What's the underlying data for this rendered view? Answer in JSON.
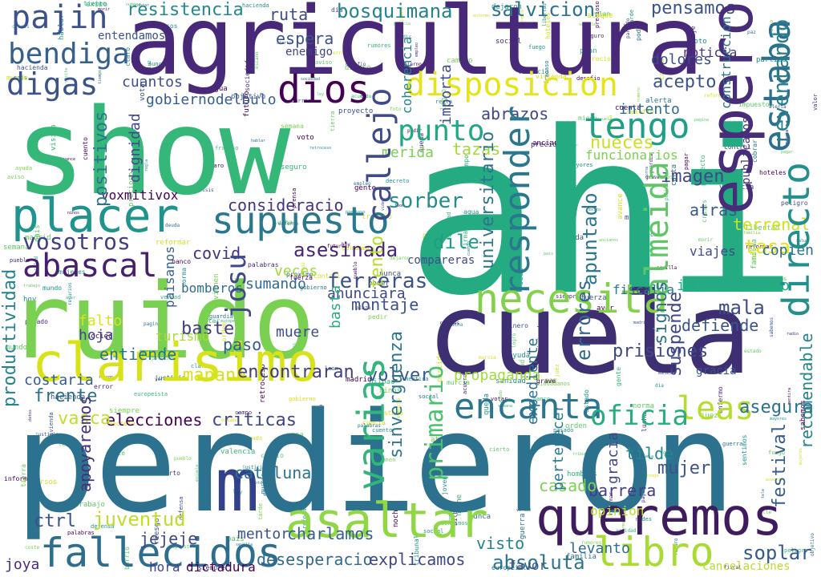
{
  "palette": {
    "dark_purple": "#440154",
    "indigo": "#3b528b",
    "teal": "#21918c",
    "green": "#5ec962",
    "lime": "#7ad151",
    "yellow": "#d5e21a"
  },
  "words": [
    {
      "text": "perdieron",
      "color": "#2c728e"
    },
    {
      "text": "ahi",
      "color": "#25ab82"
    },
    {
      "text": "agricultura",
      "color": "#482878"
    },
    {
      "text": "show",
      "color": "#35b779"
    },
    {
      "text": "ruido",
      "color": "#7ad151"
    },
    {
      "text": "cuela",
      "color": "#3e2f73"
    },
    {
      "text": "espero",
      "color": "#472c7a"
    },
    {
      "text": "placer",
      "color": "#1f948c"
    },
    {
      "text": "supuesto",
      "color": "#2a788e"
    },
    {
      "text": "clarisimo",
      "color": "#d8e219"
    },
    {
      "text": "queremos",
      "color": "#3f1c5e"
    },
    {
      "text": "asaltar",
      "color": "#8fd744"
    },
    {
      "text": "fallecidos",
      "color": "#2d6e8e"
    },
    {
      "text": "m",
      "color": "#31418b"
    },
    {
      "text": "disposicion",
      "color": "#e4e419"
    },
    {
      "text": "estaba",
      "color": "#2d708e"
    },
    {
      "text": "directo",
      "color": "#21908d"
    },
    {
      "text": "necesita",
      "color": "#83d14b"
    },
    {
      "text": "libro",
      "color": "#a8db34"
    },
    {
      "text": "encanta",
      "color": "#2b758e"
    },
    {
      "text": "abascal",
      "color": "#481f70"
    },
    {
      "text": "pajin",
      "color": "#3b528b"
    },
    {
      "text": "dios",
      "color": "#440154"
    },
    {
      "text": "bendiga",
      "color": "#355f8d"
    },
    {
      "text": "digas",
      "color": "#3a538b"
    },
    {
      "text": "punto",
      "color": "#22a884"
    },
    {
      "text": "tengo",
      "color": "#1f9e89"
    },
    {
      "text": "varias",
      "color": "#30b57a"
    },
    {
      "text": "leas",
      "color": "#b5de2b"
    },
    {
      "text": "oficia",
      "color": "#26ad81"
    },
    {
      "text": "almeida",
      "color": "#5dc863"
    },
    {
      "text": "responder",
      "color": "#2a788e"
    },
    {
      "text": "terrenal",
      "color": "#3e4a89"
    },
    {
      "text": "callejo",
      "color": "#cde11d"
    },
    {
      "text": "vosotros",
      "color": "#433e85"
    },
    {
      "text": "josu",
      "color": "#3f4889"
    },
    {
      "text": "resistencia",
      "color": "#23898e"
    },
    {
      "text": "bosquimana",
      "color": "#26828e"
    },
    {
      "text": "salvicion",
      "color": "#2c728e"
    },
    {
      "text": "consideracio",
      "color": "#46337e"
    },
    {
      "text": "asesinada",
      "color": "#482576"
    },
    {
      "text": "ferreras",
      "color": "#3b528b"
    },
    {
      "text": "mala",
      "color": "#3e4c8a"
    },
    {
      "text": "sorber",
      "color": "#228d8d"
    },
    {
      "text": "tasa",
      "color": "#e5e419"
    },
    {
      "text": "dile",
      "color": "#1f9e89"
    },
    {
      "text": "tento",
      "color": "#b8de29"
    },
    {
      "text": "reventando",
      "color": "#277f8e"
    },
    {
      "text": "abrazos",
      "color": "#404688"
    },
    {
      "text": "tazas",
      "color": "#a2da37"
    },
    {
      "text": "primario",
      "color": "#4ac16d"
    },
    {
      "text": "asegura",
      "color": "#2d708e"
    },
    {
      "text": "sinverguenza",
      "color": "#2b758e"
    },
    {
      "text": "manana",
      "color": "#d8e219"
    },
    {
      "text": "prisiones",
      "color": "#3e4989"
    },
    {
      "text": "encontraran",
      "color": "#433d84"
    },
    {
      "text": "volver",
      "color": "#39568c"
    },
    {
      "text": "entiende",
      "color": "#2b748e"
    },
    {
      "text": "elecciones",
      "color": "#440154"
    },
    {
      "text": "criticas",
      "color": "#3f4788"
    },
    {
      "text": "juventud",
      "color": "#bddf26"
    },
    {
      "text": "jejeje",
      "color": "#3e4a89"
    },
    {
      "text": "charlamos",
      "color": "#355f8d"
    },
    {
      "text": "desesperacio",
      "color": "#306a8e"
    },
    {
      "text": "explicamos",
      "color": "#3f4788"
    },
    {
      "text": "absoluta",
      "color": "#2b758e"
    },
    {
      "text": "soplar",
      "color": "#375a8c"
    },
    {
      "text": "cancelaciones",
      "color": "#bade28"
    },
    {
      "text": "visto",
      "color": "#26818e"
    },
    {
      "text": "favor",
      "color": "#3b528b"
    },
    {
      "text": "levanto",
      "color": "#2e6e8e"
    },
    {
      "text": "mentor",
      "color": "#3b528b"
    },
    {
      "text": "hora",
      "color": "#3f4788"
    },
    {
      "text": "dictadura",
      "color": "#440154"
    },
    {
      "text": "joya",
      "color": "#472f7d"
    },
    {
      "text": "ctrl",
      "color": "#3b518b"
    },
    {
      "text": "frente",
      "color": "#2d708e"
    },
    {
      "text": "vasca",
      "color": "#c0df25"
    },
    {
      "text": "costaria",
      "color": "#365c8d"
    },
    {
      "text": "productividad",
      "color": "#25838e"
    },
    {
      "text": "hoja",
      "color": "#3e4989"
    },
    {
      "text": "falto",
      "color": "#dae319"
    },
    {
      "text": "baste",
      "color": "#433e85"
    },
    {
      "text": "paso",
      "color": "#355e8d"
    },
    {
      "text": "muere",
      "color": "#3e4c8a"
    },
    {
      "text": "sumando",
      "color": "#2f6b8e"
    },
    {
      "text": "veces",
      "color": "#a0da39"
    },
    {
      "text": "covid",
      "color": "#46337f"
    },
    {
      "text": "copien",
      "color": "#2e6f8e"
    },
    {
      "text": "defiende",
      "color": "#3a548c"
    },
    {
      "text": "suspende",
      "color": "#3f4688"
    },
    {
      "text": "signos",
      "color": "#2d718e"
    },
    {
      "text": "errores",
      "color": "#31688e"
    },
    {
      "text": "basta",
      "color": "#26ad81"
    },
    {
      "text": "montaje",
      "color": "#3b528b"
    },
    {
      "text": "anunciara",
      "color": "#3e4989"
    },
    {
      "text": "intermediario",
      "color": "#25ac82"
    },
    {
      "text": "fiscalia",
      "color": "#2a778e"
    },
    {
      "text": "propaganda",
      "color": "#9fda3a"
    },
    {
      "text": "expediente",
      "color": "#2d708e"
    },
    {
      "text": "festival",
      "color": "#375b8d"
    },
    {
      "text": "mujer",
      "color": "#3a548c"
    },
    {
      "text": "barrera",
      "color": "#433d84"
    },
    {
      "text": "tilde",
      "color": "#24878e"
    },
    {
      "text": "casado",
      "color": "#7cd250"
    },
    {
      "text": "opinion",
      "color": "#bfdf25"
    },
    {
      "text": "cataluna",
      "color": "#2c728e"
    },
    {
      "text": "apoyaremos",
      "color": "#46307e"
    },
    {
      "text": "voxmitivox",
      "color": "#440154"
    },
    {
      "text": "gobiernodelbulo",
      "color": "#365d8d"
    },
    {
      "text": "cuantos",
      "color": "#3d4e8a"
    },
    {
      "text": "positivos",
      "color": "#2c738e"
    },
    {
      "text": "dignidad",
      "color": "#3e4989"
    },
    {
      "text": "espera",
      "color": "#3b528b"
    },
    {
      "text": "ruta",
      "color": "#3e4a89"
    },
    {
      "text": "enemigo",
      "color": "#3f4788"
    },
    {
      "text": "importa",
      "color": "#3e4a89"
    },
    {
      "text": "universitario",
      "color": "#2b748e"
    },
    {
      "text": "acepto",
      "color": "#3b528b"
    },
    {
      "text": "intento",
      "color": "#30698e"
    },
    {
      "text": "nueces",
      "color": "#cae11f"
    },
    {
      "text": "funcionarios",
      "color": "#7ad151"
    },
    {
      "text": "imagen",
      "color": "#3f4889"
    },
    {
      "text": "apuntado",
      "color": "#2a768e"
    },
    {
      "text": "atras",
      "color": "#375a8c"
    },
    {
      "text": "viajes",
      "color": "#3e4a89"
    },
    {
      "text": "recomendable",
      "color": "#25848e"
    },
    {
      "text": "pensamos",
      "color": "#3b528b"
    },
    {
      "text": "noticia",
      "color": "#46337f"
    },
    {
      "text": "dolores",
      "color": "#3e4a89"
    },
    {
      "text": "merida",
      "color": "#7ad151"
    },
    {
      "text": "bomberos",
      "color": "#2e6e8e"
    },
    {
      "text": "paisanos",
      "color": "#355f8d"
    },
    {
      "text": "turismo",
      "color": "#a5db36"
    },
    {
      "text": "entendamos",
      "color": "#3b528b"
    },
    {
      "text": "coherencia",
      "color": "#25858e"
    },
    {
      "text": "construccion",
      "color": "#2c728e"
    },
    {
      "text": "publicados",
      "color": "#46327e"
    },
    {
      "text": "compareras",
      "color": "#2a788e"
    },
    {
      "text": "pertenecer",
      "color": "#3f4788"
    },
    {
      "text": "gracia",
      "color": "#3e4c8a"
    },
    {
      "text": "presidente",
      "color": "#31688e"
    },
    {
      "text": "oficiales",
      "color": "#3b528b"
    }
  ],
  "filler_words": [
    "europeista",
    "enfermo",
    "desafio",
    "pagina",
    "exito",
    "morir",
    "precioso",
    "cuento",
    "ancianos",
    "sociedad",
    "hablar",
    "reformar",
    "libertad",
    "pueblo",
    "votar",
    "mentira",
    "verdad",
    "salud",
    "valencia",
    "acuerdo",
    "palabras",
    "grave",
    "futuro",
    "gente",
    "hacienda",
    "ciudadanos",
    "vivienda",
    "empleo",
    "crisis",
    "siempre",
    "nunca",
    "mundo",
    "tiempo",
    "semana",
    "trabajo",
    "derecho",
    "justicia",
    "social",
    "partido",
    "gobierno",
    "politica",
    "estado",
    "pais",
    "madrid",
    "sevilla",
    "bilbao",
    "murcia",
    "leon",
    "rumores",
    "sabemos",
    "escucha",
    "cierto",
    "claro",
    "pedir",
    "recursos",
    "dinero",
    "ayuda",
    "sanidad",
    "escuela",
    "familia",
    "ninos",
    "mayores",
    "jovenes",
    "mujeres",
    "hombres",
    "calle",
    "plaza",
    "barrio",
    "campo",
    "mar",
    "tierra",
    "agua",
    "fuego",
    "luz",
    "noche",
    "dia",
    "manana",
    "tarde",
    "hoy",
    "ayer",
    "visita",
    "hoteles",
    "dejaron",
    "pasado",
    "proximo",
    "vienen",
    "creemos",
    "sentimos",
    "queda",
    "pagar",
    "cobrar",
    "impuestos",
    "deuda",
    "banco",
    "precio",
    "coste",
    "cuenta",
    "numero",
    "datos",
    "informe",
    "prensa",
    "radio",
    "tele",
    "redes",
    "video",
    "foto",
    "mensaje",
    "carta",
    "firma",
    "proyecto",
    "plan",
    "objetivo",
    "meta",
    "logro",
    "fracaso",
    "error",
    "aviso",
    "alerta",
    "peligro",
    "riesgo",
    "seguro",
    "miedo",
    "valor",
    "fuerza",
    "poder",
    "control",
    "orden",
    "caos",
    "paz",
    "guerra",
    "lucha",
    "defensa",
    "ataque",
    "voto",
    "urna",
    "escano",
    "sede",
    "tribunal",
    "juez",
    "fiscal",
    "policia",
    "guardia",
    "ley",
    "norma",
    "regla",
    "decreto",
    "reforma",
    "cambio",
    "avance",
    "retroceso"
  ]
}
